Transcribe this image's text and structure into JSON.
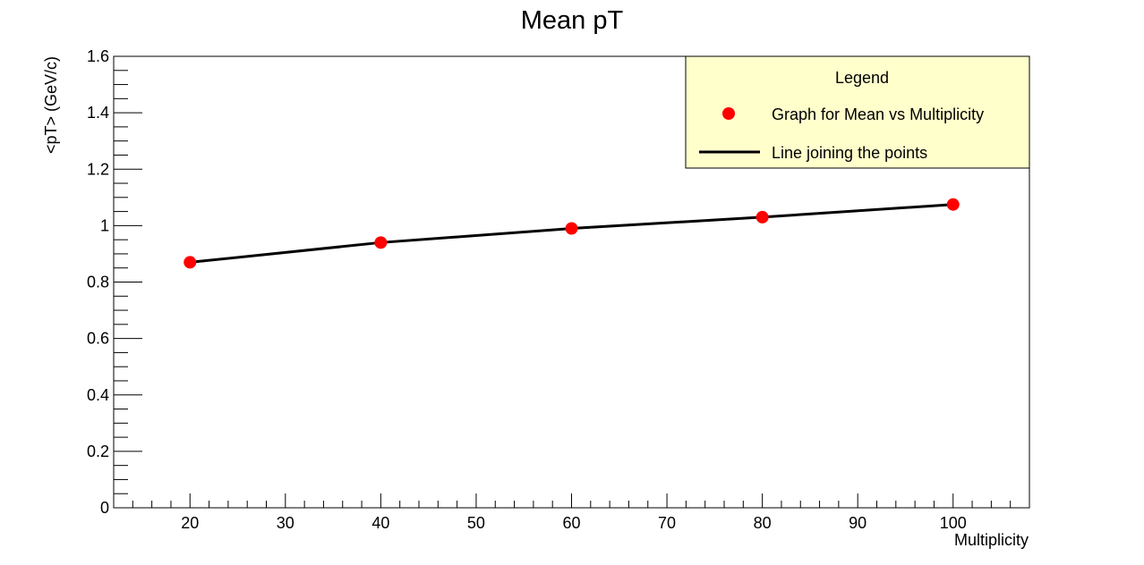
{
  "chart_data": {
    "type": "scatter",
    "title": "Mean pT",
    "xlabel": "Multiplicity",
    "ylabel": "<pT> (GeV/c)",
    "xlim": [
      12,
      108
    ],
    "ylim": [
      0,
      1.6
    ],
    "x_major_ticks": [
      20,
      30,
      40,
      50,
      60,
      70,
      80,
      90,
      100
    ],
    "x_tick_labels": [
      "20",
      "30",
      "40",
      "50",
      "60",
      "70",
      "80",
      "90",
      "100"
    ],
    "y_major_ticks": [
      0,
      0.2,
      0.4,
      0.6,
      0.8,
      1.0,
      1.2,
      1.4,
      1.6
    ],
    "y_tick_labels": [
      "0",
      "0.2",
      "0.4",
      "0.6",
      "0.8",
      "1",
      "1.2",
      "1.4",
      "1.6"
    ],
    "grid": false,
    "series": [
      {
        "name": "Graph for Mean vs Multiplicity",
        "x": [
          20,
          40,
          60,
          80,
          100
        ],
        "y": [
          0.87,
          0.94,
          0.99,
          1.03,
          1.075
        ],
        "marker_color": "#ff0000",
        "line_color": "#000000"
      }
    ],
    "legend": {
      "title": "Legend",
      "position": "top-right",
      "background": "#ffffcc",
      "entries": [
        {
          "label": "Graph for Mean vs Multiplicity",
          "symbol": "marker"
        },
        {
          "label": "Line joining the points",
          "symbol": "line"
        }
      ]
    }
  }
}
